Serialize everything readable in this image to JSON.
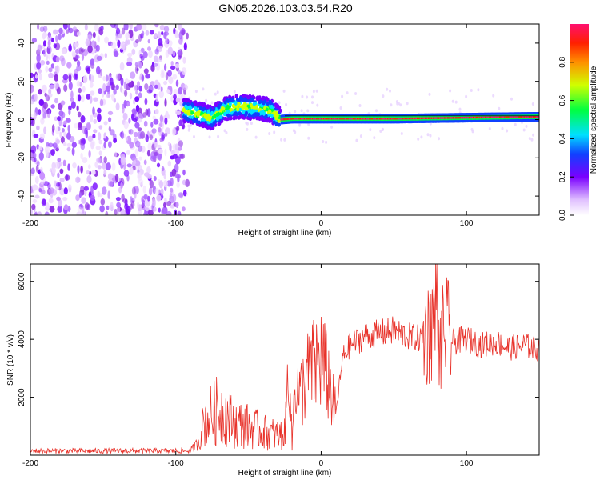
{
  "title": "GN05.2026.103.03.54.R20",
  "chart_data": [
    {
      "type": "heatmap",
      "name": "spectrogram",
      "xlabel": "Height of straight line (km)",
      "ylabel": "Frequency (Hz)",
      "xlim": [
        -200,
        150
      ],
      "ylim": [
        -50,
        50
      ],
      "x_ticks": [
        -200,
        -100,
        0,
        100
      ],
      "y_ticks": [
        -40,
        -20,
        0,
        20,
        40
      ],
      "colorbar": {
        "label": "Normalized spectral amplitude",
        "range": [
          0,
          1
        ],
        "ticks": [
          0.0,
          0.2,
          0.4,
          0.6,
          0.8
        ]
      },
      "ridge": [
        {
          "x": -95,
          "f": 5
        },
        {
          "x": -85,
          "f": 3
        },
        {
          "x": -75,
          "f": 1
        },
        {
          "x": -65,
          "f": 6
        },
        {
          "x": -55,
          "f": 7
        },
        {
          "x": -45,
          "f": 6
        },
        {
          "x": -35,
          "f": 5
        },
        {
          "x": -28,
          "f": 0
        },
        {
          "x": -20,
          "f": 0.5
        },
        {
          "x": 0,
          "f": 0.5
        },
        {
          "x": 50,
          "f": 0.5
        },
        {
          "x": 100,
          "f": 1
        },
        {
          "x": 150,
          "f": 1.5
        }
      ]
    },
    {
      "type": "line",
      "name": "snr",
      "xlabel": "Height of straight line (km)",
      "ylabel": "SNR (10 * v/v)",
      "xlim": [
        -200,
        150
      ],
      "ylim": [
        0,
        6600
      ],
      "x_ticks": [
        -200,
        -100,
        0,
        100
      ],
      "y_ticks": [
        2000,
        4000,
        6000
      ],
      "color": "#e8322a",
      "series": [
        {
          "name": "SNR",
          "x": [
            -200,
            -150,
            -100,
            -90,
            -85,
            -80,
            -70,
            -60,
            -50,
            -40,
            -30,
            -25,
            -22,
            -20,
            -18,
            -15,
            -10,
            -5,
            0,
            5,
            10,
            15,
            20,
            30,
            40,
            50,
            60,
            70,
            75,
            78,
            80,
            82,
            85,
            90,
            100,
            110,
            120,
            130,
            140,
            150
          ],
          "y": [
            150,
            150,
            150,
            150,
            400,
            1200,
            1600,
            1100,
            1000,
            800,
            700,
            700,
            3500,
            250,
            2800,
            2000,
            2700,
            3000,
            3400,
            2600,
            1400,
            3400,
            3800,
            4100,
            4200,
            4300,
            4100,
            4000,
            4300,
            5000,
            3700,
            3600,
            4500,
            3900,
            4000,
            3800,
            3900,
            3700,
            3800,
            3650
          ]
        }
      ]
    }
  ]
}
